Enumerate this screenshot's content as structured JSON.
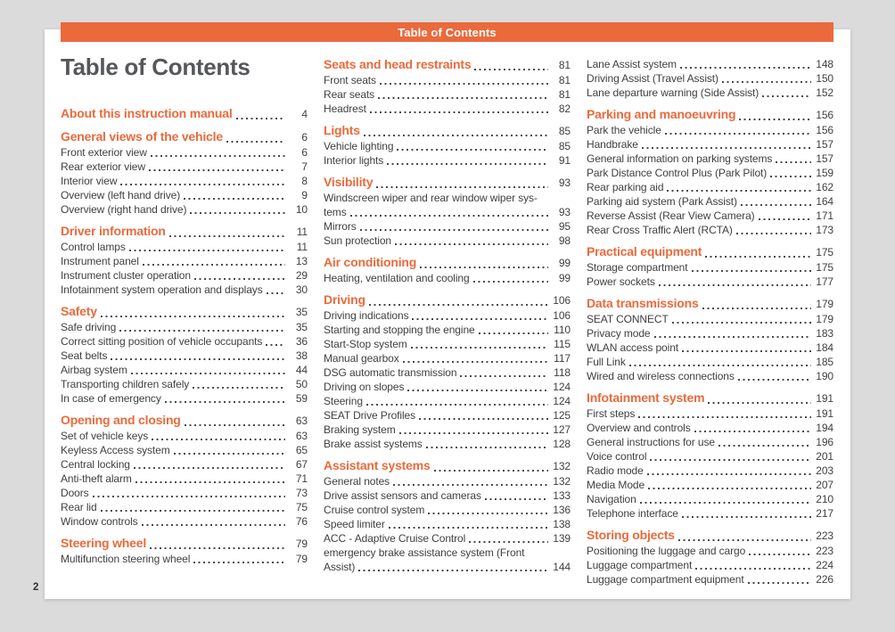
{
  "colors": {
    "accent": "#ea6a3c",
    "title": "#56575b",
    "text": "#3e3f42",
    "dots": "#46474a",
    "background": "#dbdbdb",
    "page": "#ffffff"
  },
  "header_bar": {
    "label": "Table of Contents"
  },
  "title": "Table of Contents",
  "footer": {
    "page_number": "2"
  },
  "toc": {
    "columns": [
      {
        "blocks": [
          {
            "heading": {
              "label": "About this instruction manual",
              "page": "4"
            },
            "entries": []
          },
          {
            "heading": {
              "label": "General views of the vehicle",
              "page": "6"
            },
            "entries": [
              {
                "label": "Front exterior view",
                "page": "6"
              },
              {
                "label": "Rear exterior view",
                "page": "7"
              },
              {
                "label": "Interior view",
                "page": "8"
              },
              {
                "label": "Overview (left hand drive)",
                "page": "9"
              },
              {
                "label": "Overview (right hand drive)",
                "page": "10"
              }
            ]
          },
          {
            "heading": {
              "label": "Driver information",
              "page": "11"
            },
            "entries": [
              {
                "label": "Control lamps",
                "page": "11"
              },
              {
                "label": "Instrument panel",
                "page": "13"
              },
              {
                "label": "Instrument cluster operation",
                "page": "29"
              },
              {
                "label": "Infotainment system operation and displays",
                "page": "30"
              }
            ]
          },
          {
            "heading": {
              "label": "Safety",
              "page": "35"
            },
            "entries": [
              {
                "label": "Safe driving",
                "page": "35"
              },
              {
                "label": "Correct sitting position of vehicle occupants",
                "page": "36"
              },
              {
                "label": "Seat belts",
                "page": "38"
              },
              {
                "label": "Airbag system",
                "page": "44"
              },
              {
                "label": "Transporting children safely",
                "page": "50"
              },
              {
                "label": "In case of emergency",
                "page": "59"
              }
            ]
          },
          {
            "heading": {
              "label": "Opening and closing",
              "page": "63"
            },
            "entries": [
              {
                "label": "Set of vehicle keys",
                "page": "63"
              },
              {
                "label": "Keyless Access system",
                "page": "65"
              },
              {
                "label": "Central locking",
                "page": "67"
              },
              {
                "label": "Anti-theft alarm",
                "page": "71"
              },
              {
                "label": "Doors",
                "page": "73"
              },
              {
                "label": "Rear lid",
                "page": "75"
              },
              {
                "label": "Window controls",
                "page": "76"
              }
            ]
          },
          {
            "heading": {
              "label": "Steering wheel",
              "page": "79"
            },
            "entries": [
              {
                "label": "Multifunction steering wheel",
                "page": "79"
              }
            ]
          }
        ]
      },
      {
        "blocks": [
          {
            "heading": {
              "label": "Seats and head restraints",
              "page": "81"
            },
            "entries": [
              {
                "label": "Front seats",
                "page": "81"
              },
              {
                "label": "Rear seats",
                "page": "81"
              },
              {
                "label": "Headrest",
                "page": "82"
              }
            ]
          },
          {
            "heading": {
              "label": "Lights",
              "page": "85"
            },
            "entries": [
              {
                "label": "Vehicle lighting",
                "page": "85"
              },
              {
                "label": "Interior lights",
                "page": "91"
              }
            ]
          },
          {
            "heading": {
              "label": "Visibility",
              "page": "93"
            },
            "entries": [
              {
                "label": "Windscreen wiper and rear window wiper sys-",
                "page": ""
              },
              {
                "label": "tems",
                "page": "93"
              },
              {
                "label": "Mirrors",
                "page": "95"
              },
              {
                "label": "Sun protection",
                "page": "98"
              }
            ]
          },
          {
            "heading": {
              "label": "Air conditioning",
              "page": "99"
            },
            "entries": [
              {
                "label": "Heating, ventilation and cooling",
                "page": "99"
              }
            ]
          },
          {
            "heading": {
              "label": "Driving",
              "page": "106"
            },
            "entries": [
              {
                "label": "Driving indications",
                "page": "106"
              },
              {
                "label": "Starting and stopping the engine",
                "page": "110"
              },
              {
                "label": "Start-Stop system",
                "page": "115"
              },
              {
                "label": "Manual gearbox",
                "page": "117"
              },
              {
                "label": "DSG automatic transmission",
                "page": "118"
              },
              {
                "label": "Driving on slopes",
                "page": "124"
              },
              {
                "label": "Steering",
                "page": "124"
              },
              {
                "label": "SEAT Drive Profiles",
                "page": "125"
              },
              {
                "label": "Braking system",
                "page": "127"
              },
              {
                "label": "Brake assist systems",
                "page": "128"
              }
            ]
          },
          {
            "heading": {
              "label": "Assistant systems",
              "page": "132"
            },
            "entries": [
              {
                "label": "General notes",
                "page": "132"
              },
              {
                "label": "Drive assist sensors and cameras",
                "page": "133"
              },
              {
                "label": "Cruise control system",
                "page": "136"
              },
              {
                "label": "Speed limiter",
                "page": "138"
              },
              {
                "label": "ACC - Adaptive Cruise Control",
                "page": "139"
              },
              {
                "label": "emergency brake assistance system (Front",
                "page": ""
              },
              {
                "label": "Assist)",
                "page": "144"
              }
            ]
          }
        ]
      },
      {
        "blocks": [
          {
            "heading": null,
            "entries": [
              {
                "label": "Lane Assist system",
                "page": "148"
              },
              {
                "label": "Driving Assist (Travel Assist)",
                "page": "150"
              },
              {
                "label": "Lane departure warning (Side Assist)",
                "page": "152"
              }
            ]
          },
          {
            "heading": {
              "label": "Parking and manoeuvring",
              "page": "156"
            },
            "entries": [
              {
                "label": "Park the vehicle",
                "page": "156"
              },
              {
                "label": "Handbrake",
                "page": "157"
              },
              {
                "label": "General information on parking systems",
                "page": "157"
              },
              {
                "label": "Park Distance Control Plus (Park Pilot)",
                "page": "159"
              },
              {
                "label": "Rear parking aid",
                "page": "162"
              },
              {
                "label": "Parking aid system (Park Assist)",
                "page": "164"
              },
              {
                "label": "Reverse Assist (Rear View Camera)",
                "page": "171"
              },
              {
                "label": "Rear Cross Traffic Alert (RCTA)",
                "page": "173"
              }
            ]
          },
          {
            "heading": {
              "label": "Practical equipment",
              "page": "175"
            },
            "entries": [
              {
                "label": "Storage compartment",
                "page": "175"
              },
              {
                "label": "Power sockets",
                "page": "177"
              }
            ]
          },
          {
            "heading": {
              "label": "Data transmissions",
              "page": "179"
            },
            "entries": [
              {
                "label": "SEAT CONNECT",
                "page": "179"
              },
              {
                "label": "Privacy mode",
                "page": "183"
              },
              {
                "label": "WLAN access point",
                "page": "184"
              },
              {
                "label": "Full Link",
                "page": "185"
              },
              {
                "label": "Wired and wireless connections",
                "page": "190"
              }
            ]
          },
          {
            "heading": {
              "label": "Infotainment system",
              "page": "191"
            },
            "entries": [
              {
                "label": "First steps",
                "page": "191"
              },
              {
                "label": "Overview and controls",
                "page": "194"
              },
              {
                "label": "General instructions for use",
                "page": "196"
              },
              {
                "label": "Voice control",
                "page": "201"
              },
              {
                "label": "Radio mode",
                "page": "203"
              },
              {
                "label": "Media Mode",
                "page": "207"
              },
              {
                "label": "Navigation",
                "page": "210"
              },
              {
                "label": "Telephone interface",
                "page": "217"
              }
            ]
          },
          {
            "heading": {
              "label": "Storing objects",
              "page": "223"
            },
            "entries": [
              {
                "label": "Positioning the luggage and cargo",
                "page": "223"
              },
              {
                "label": "Luggage compartment",
                "page": "224"
              },
              {
                "label": "Luggage compartment equipment",
                "page": "226"
              }
            ]
          }
        ]
      }
    ]
  }
}
